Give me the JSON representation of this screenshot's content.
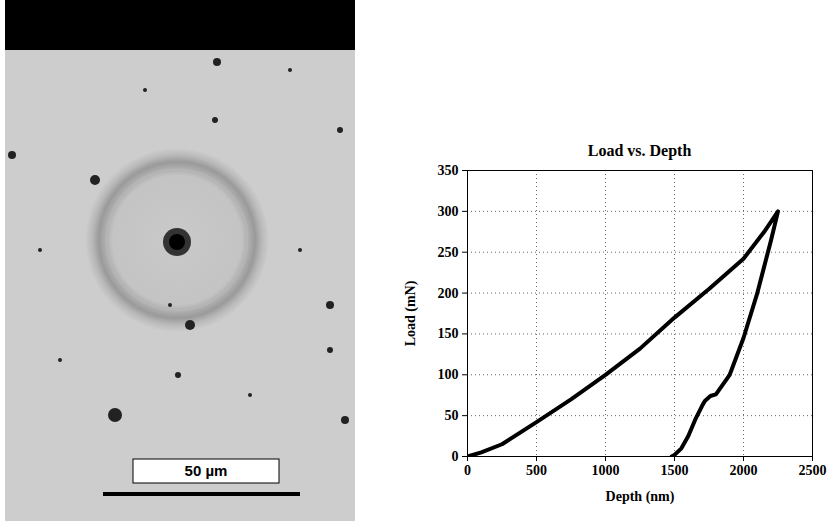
{
  "chart_data": {
    "type": "line",
    "title": "Load vs. Depth",
    "x_label": "Depth (nm)",
    "y_label": "Load (mN)",
    "x": [
      0,
      100,
      250,
      500,
      750,
      1000,
      1250,
      1500,
      1750,
      2000,
      2150,
      2250,
      2200,
      2100,
      2000,
      1900,
      1800,
      1760,
      1720,
      1700,
      1650,
      1600,
      1550,
      1500,
      1480
    ],
    "series": [
      {
        "name": "Load",
        "color": "#000000",
        "values": [
          0,
          5,
          15,
          42,
          70,
          100,
          132,
          170,
          205,
          242,
          275,
          300,
          265,
          200,
          145,
          100,
          76,
          74,
          68,
          62,
          45,
          25,
          10,
          2,
          0
        ]
      }
    ],
    "xlim": [
      0,
      2500
    ],
    "xticks": [
      0,
      500,
      1000,
      1500,
      2000,
      2500
    ],
    "ylim": [
      0,
      350
    ],
    "yticks": [
      0,
      50,
      100,
      150,
      200,
      250,
      300,
      350
    ],
    "grid": true,
    "line_style": "solid"
  },
  "micrograph": {
    "scale_bar_label": "50 µm"
  }
}
